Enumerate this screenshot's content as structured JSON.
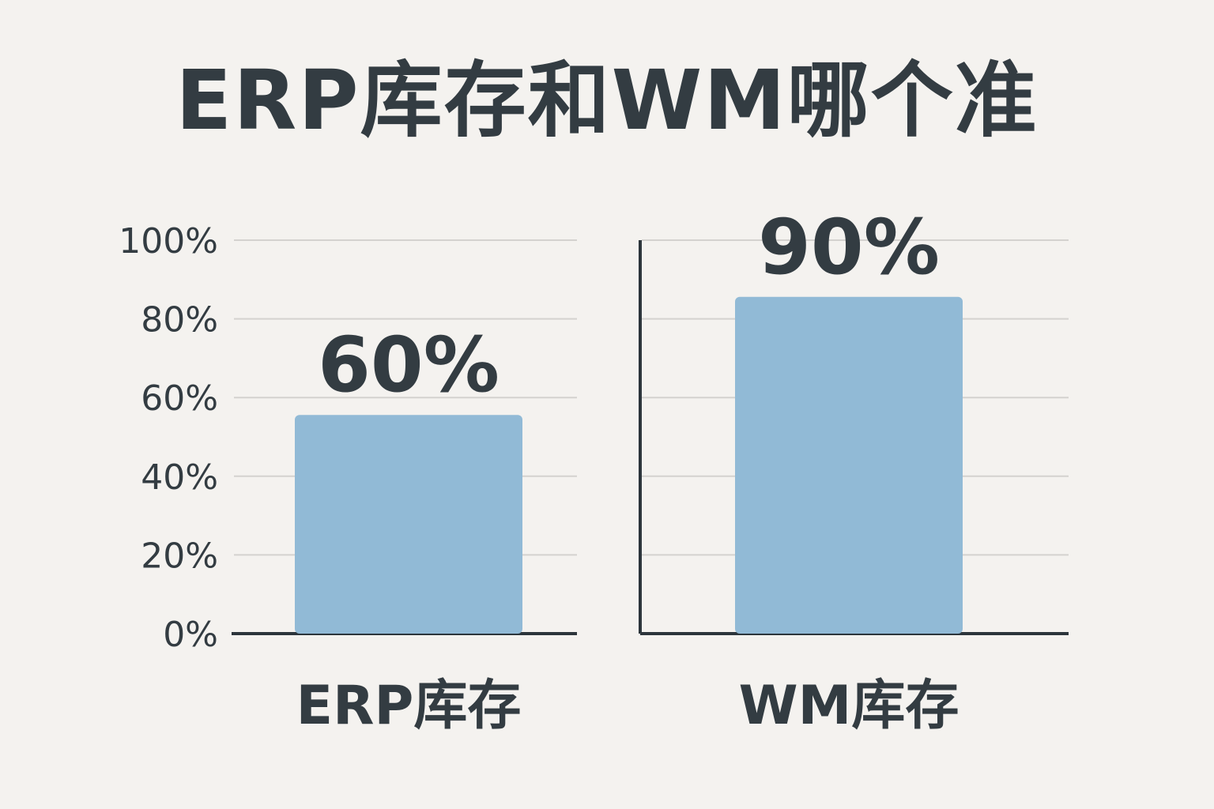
{
  "chart_data": {
    "type": "bar",
    "title": "ERP库存和WM哪个准",
    "categories": [
      "ERP库存",
      "WM库存"
    ],
    "values": [
      60,
      90
    ],
    "value_labels": [
      "60%",
      "90%"
    ],
    "ylim": [
      0,
      100
    ],
    "yticks": [
      0,
      20,
      40,
      60,
      80,
      100
    ],
    "ytick_labels": [
      "0%",
      "20%",
      "40%",
      "60%",
      "80%",
      "100%"
    ],
    "grid": true,
    "xlabel": "",
    "ylabel": "",
    "colors": {
      "bar": "#91bad6",
      "text": "#333c42",
      "axis": "#2c353b",
      "grid": "#d4d2cf",
      "background": "#f4f2ef"
    }
  }
}
